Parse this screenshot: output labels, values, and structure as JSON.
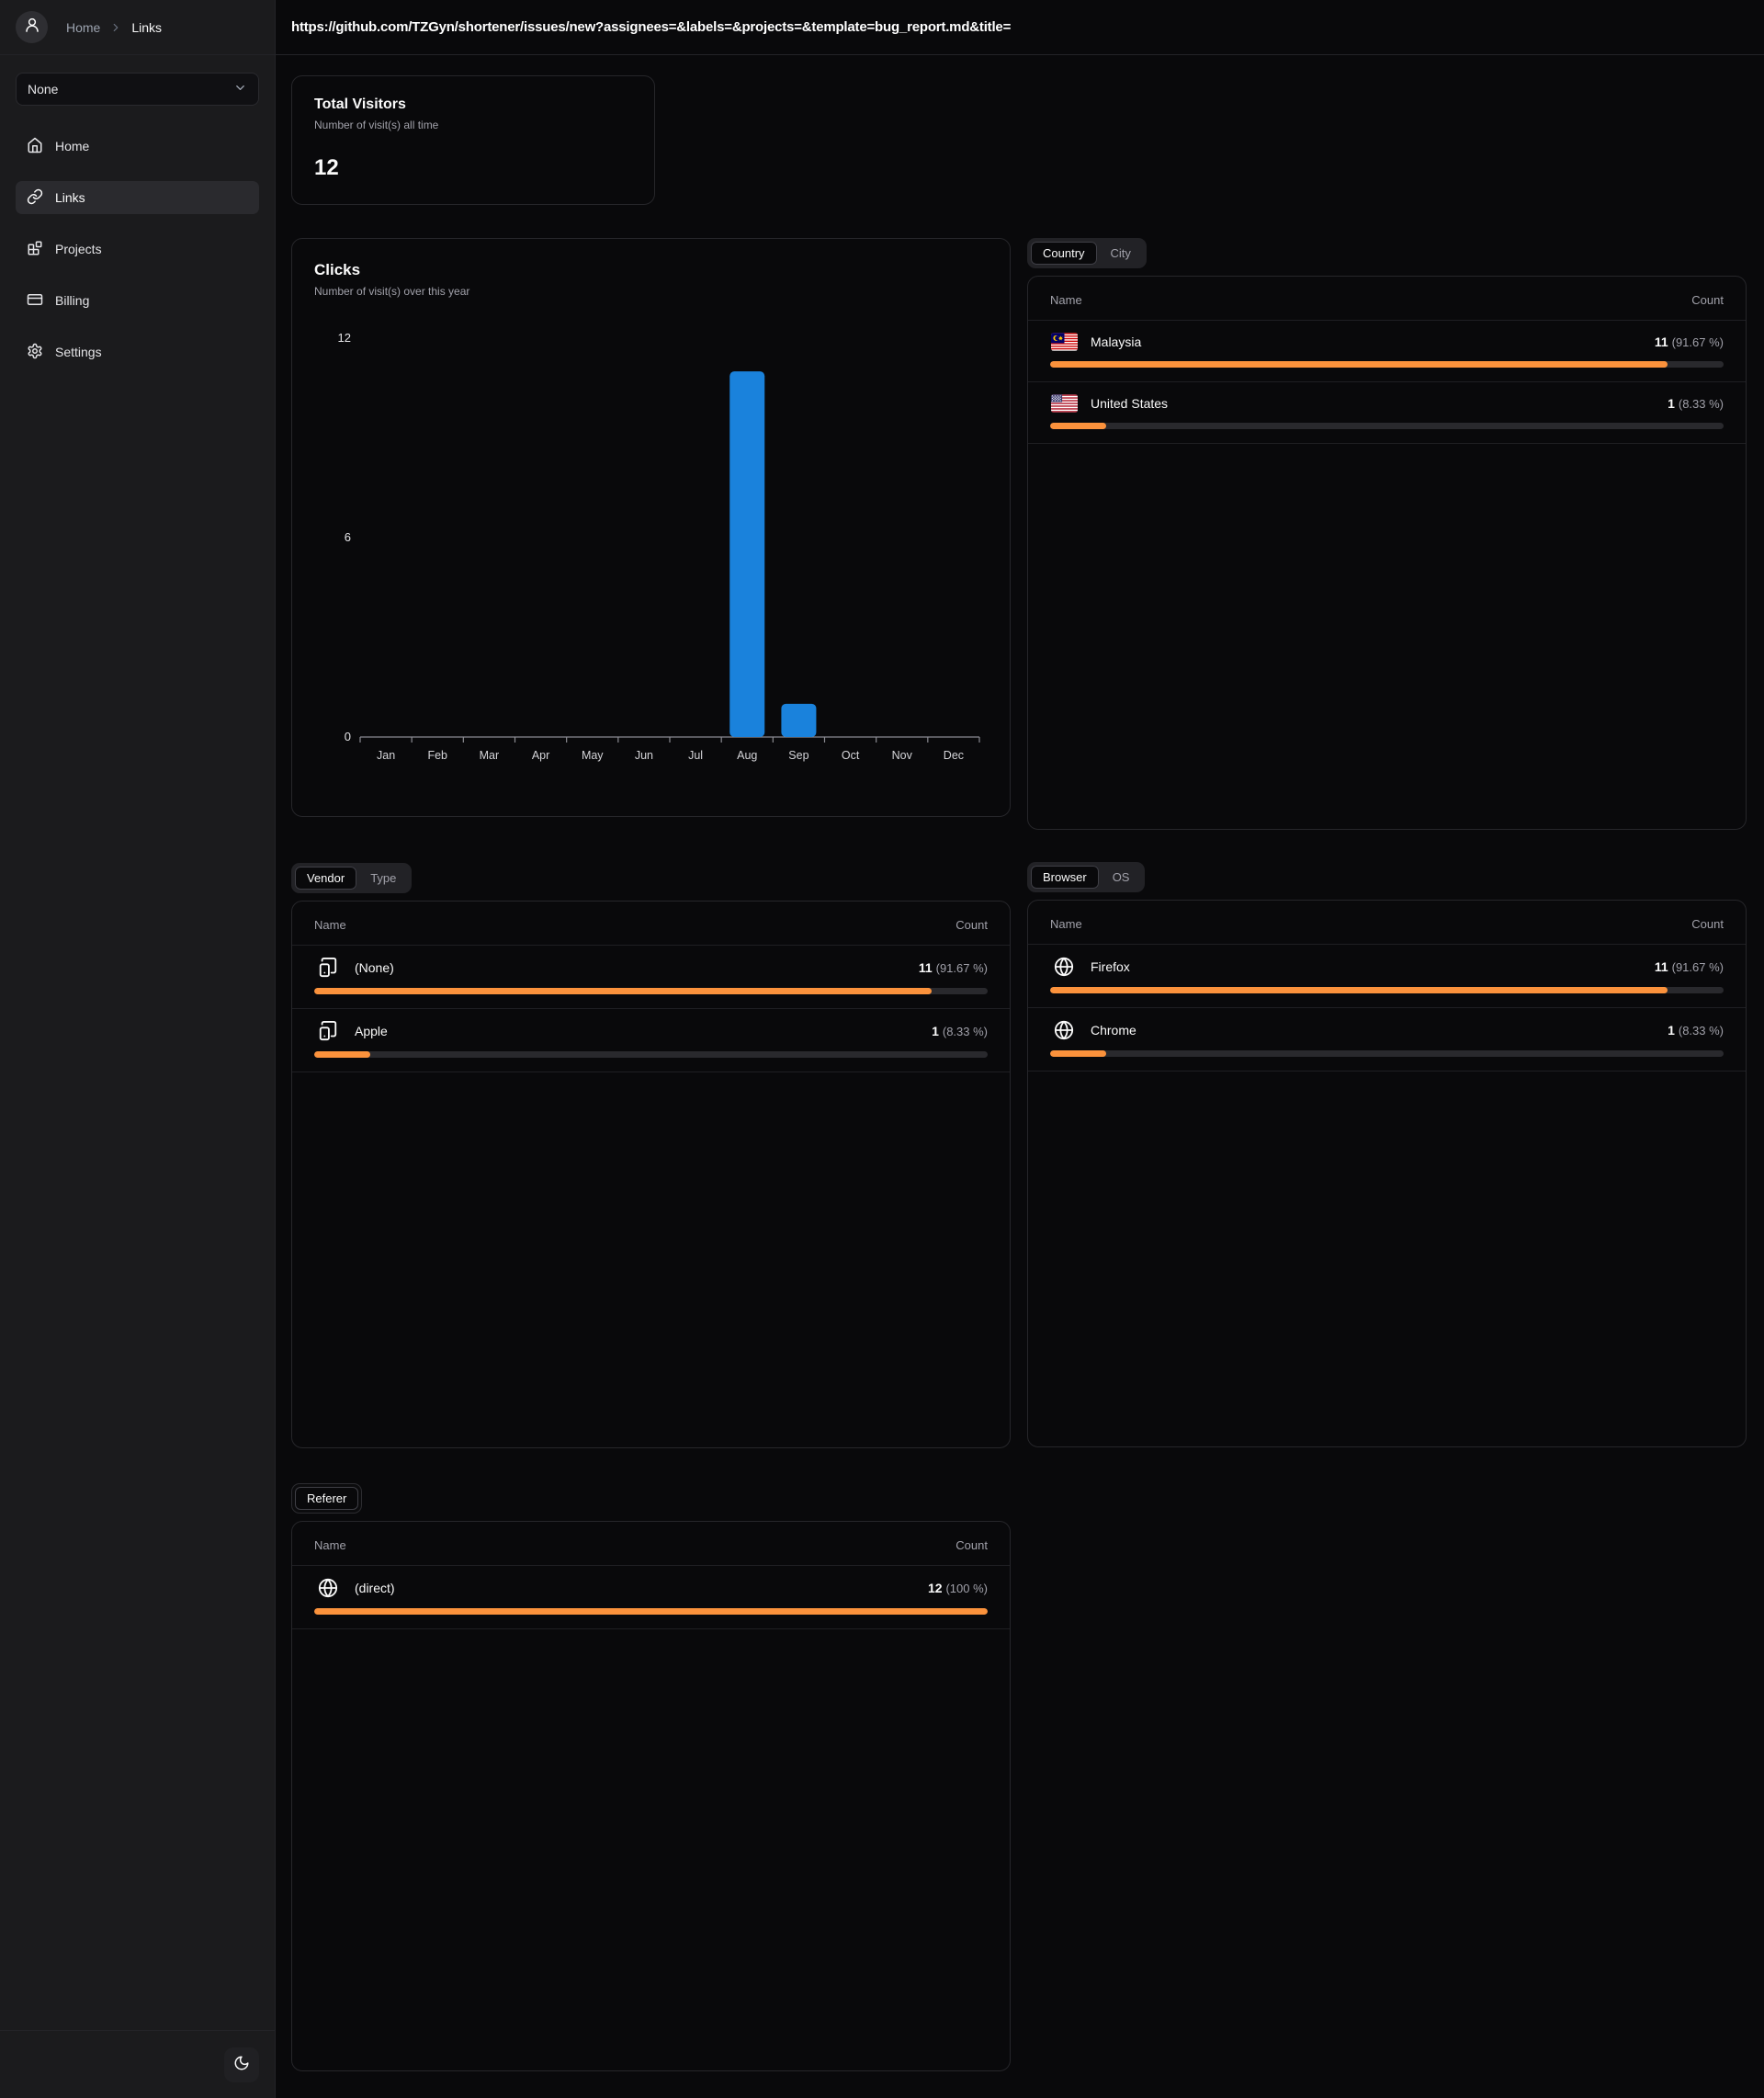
{
  "header": {
    "url": "https://github.com/TZGyn/shortener/issues/new?assignees=&labels=&projects=&template=bug_report.md&title="
  },
  "sidebar": {
    "avatar_icon": "user-icon",
    "breadcrumb": {
      "home": "Home",
      "separator_icon": "chevron-right-icon",
      "current": "Links"
    },
    "workspace_select": {
      "value": "None",
      "icon": "chevron-down-icon"
    },
    "nav": [
      {
        "label": "Home",
        "icon": "home-icon",
        "active": false
      },
      {
        "label": "Links",
        "icon": "link-icon",
        "active": true
      },
      {
        "label": "Projects",
        "icon": "blocks-icon",
        "active": false
      },
      {
        "label": "Billing",
        "icon": "credit-card-icon",
        "active": false
      },
      {
        "label": "Settings",
        "icon": "gear-icon",
        "active": false
      }
    ],
    "theme_toggle_icon": "moon-icon"
  },
  "stats": {
    "total_visitors": {
      "title": "Total Visitors",
      "subtitle": "Number of visit(s) all time",
      "value": "12"
    }
  },
  "chart_data": {
    "type": "bar",
    "title": "Clicks",
    "subtitle": "Number of visit(s) over this year",
    "categories": [
      "Jan",
      "Feb",
      "Mar",
      "Apr",
      "May",
      "Jun",
      "Jul",
      "Aug",
      "Sep",
      "Oct",
      "Nov",
      "Dec"
    ],
    "values": [
      0,
      0,
      0,
      0,
      0,
      0,
      0,
      11,
      1,
      0,
      0,
      0
    ],
    "xlabel": "",
    "ylabel": "",
    "ylim": [
      0,
      12
    ],
    "yticks": [
      0,
      6,
      12
    ],
    "grid": false,
    "legend_position": "none",
    "bar_color": "#1a82dc"
  },
  "panels": {
    "geo": {
      "tabs": [
        {
          "label": "Country",
          "active": true
        },
        {
          "label": "City",
          "active": false
        }
      ],
      "columns": {
        "name": "Name",
        "count": "Count"
      },
      "rows": [
        {
          "icon": "malaysia-flag-icon",
          "name": "Malaysia",
          "count": "11",
          "percent": "(91.67 %)",
          "pct": 91.67
        },
        {
          "icon": "us-flag-icon",
          "name": "United States",
          "count": "1",
          "percent": "(8.33 %)",
          "pct": 8.33
        }
      ]
    },
    "device": {
      "tabs": [
        {
          "label": "Vendor",
          "active": true
        },
        {
          "label": "Type",
          "active": false
        }
      ],
      "columns": {
        "name": "Name",
        "count": "Count"
      },
      "rows": [
        {
          "icon": "tablet-smartphone-icon",
          "name": "(None)",
          "count": "11",
          "percent": "(91.67 %)",
          "pct": 91.67
        },
        {
          "icon": "tablet-smartphone-icon",
          "name": "Apple",
          "count": "1",
          "percent": "(8.33 %)",
          "pct": 8.33
        }
      ]
    },
    "browser": {
      "tabs": [
        {
          "label": "Browser",
          "active": true
        },
        {
          "label": "OS",
          "active": false
        }
      ],
      "columns": {
        "name": "Name",
        "count": "Count"
      },
      "rows": [
        {
          "icon": "globe-icon",
          "name": "Firefox",
          "count": "11",
          "percent": "(91.67 %)",
          "pct": 91.67
        },
        {
          "icon": "globe-icon",
          "name": "Chrome",
          "count": "1",
          "percent": "(8.33 %)",
          "pct": 8.33
        }
      ]
    },
    "referer": {
      "tabs": [
        {
          "label": "Referer",
          "active": true
        }
      ],
      "columns": {
        "name": "Name",
        "count": "Count"
      },
      "rows": [
        {
          "icon": "globe-icon",
          "name": "(direct)",
          "count": "12",
          "percent": "(100 %)",
          "pct": 100
        }
      ]
    }
  },
  "colors": {
    "accent_orange": "#fb923c",
    "bar_blue": "#1a82dc",
    "sidebar_bg": "#1b1b1d",
    "card_border": "#26262a"
  }
}
